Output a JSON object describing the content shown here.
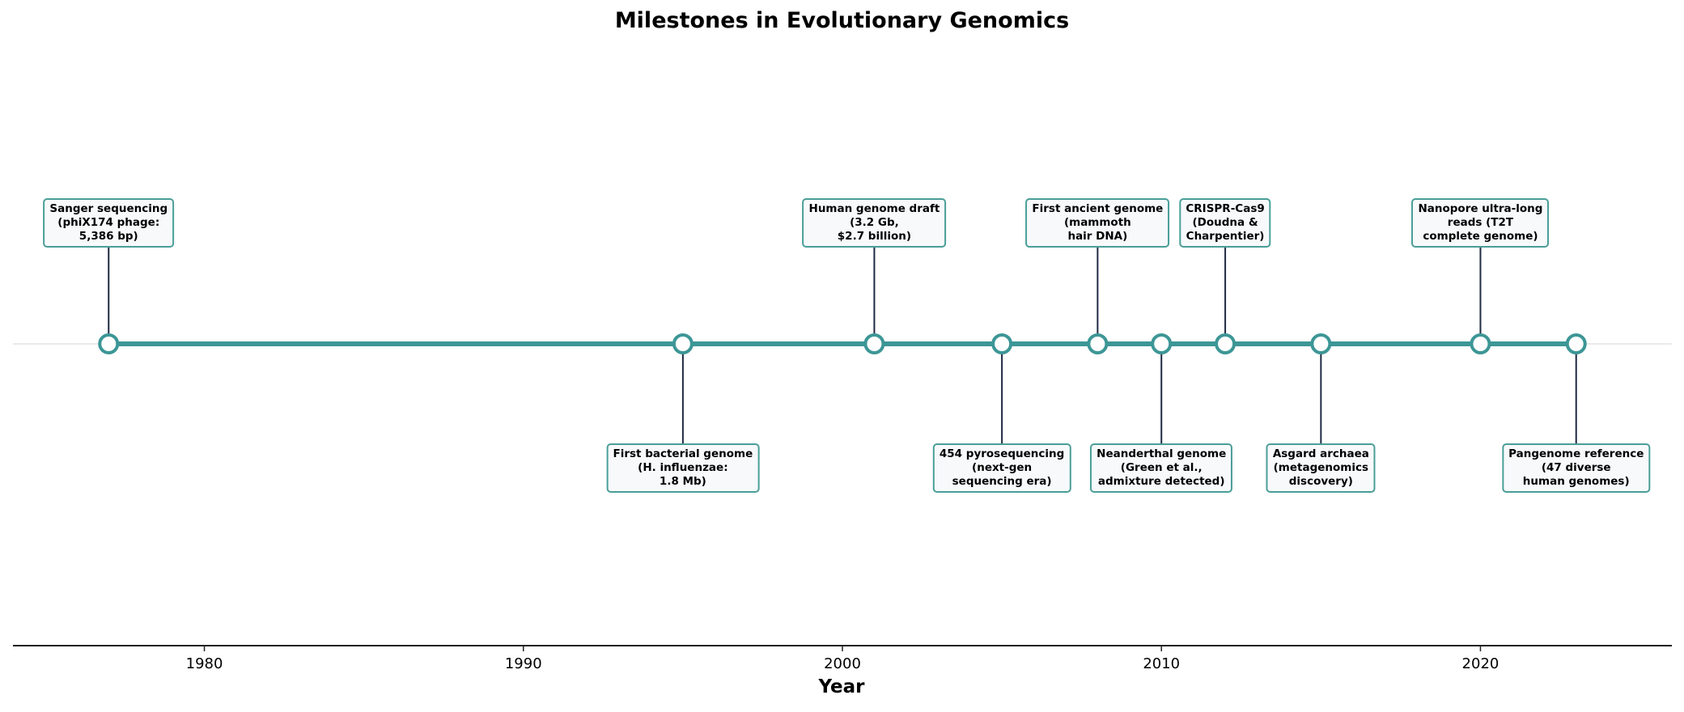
{
  "chart_data": {
    "type": "timeline",
    "title": "Milestones in Evolutionary Genomics",
    "xlabel": "Year",
    "xlim": [
      1974,
      2026
    ],
    "xticks": [
      1980,
      1990,
      2000,
      2010,
      2020
    ],
    "grid": false,
    "colors": {
      "line": "#3d9696",
      "stem": "#1f2a44",
      "box_border": "#4a9e98",
      "box_fill": "#f7f9fb"
    },
    "events": [
      {
        "year": 1977,
        "side": "up",
        "label": "Sanger sequencing\n(phiX174 phage:\n5,386 bp)"
      },
      {
        "year": 1995,
        "side": "down",
        "label": "First bacterial genome\n(H. influenzae:\n1.8 Mb)"
      },
      {
        "year": 2001,
        "side": "up",
        "label": "Human genome draft\n(3.2 Gb,\n$2.7 billion)"
      },
      {
        "year": 2005,
        "side": "down",
        "label": "454 pyrosequencing\n(next-gen\nsequencing era)"
      },
      {
        "year": 2008,
        "side": "up",
        "label": "First ancient genome\n(mammoth\nhair DNA)"
      },
      {
        "year": 2010,
        "side": "down",
        "label": "Neanderthal genome\n(Green et al.,\nadmixture detected)"
      },
      {
        "year": 2012,
        "side": "up",
        "label": "CRISPR-Cas9\n(Doudna &\nCharpentier)"
      },
      {
        "year": 2015,
        "side": "down",
        "label": "Asgard archaea\n(metagenomics\ndiscovery)"
      },
      {
        "year": 2020,
        "side": "up",
        "label": "Nanopore ultra-long\nreads (T2T\ncomplete genome)"
      },
      {
        "year": 2023,
        "side": "down",
        "label": "Pangenome reference\n(47 diverse\nhuman genomes)"
      }
    ]
  }
}
